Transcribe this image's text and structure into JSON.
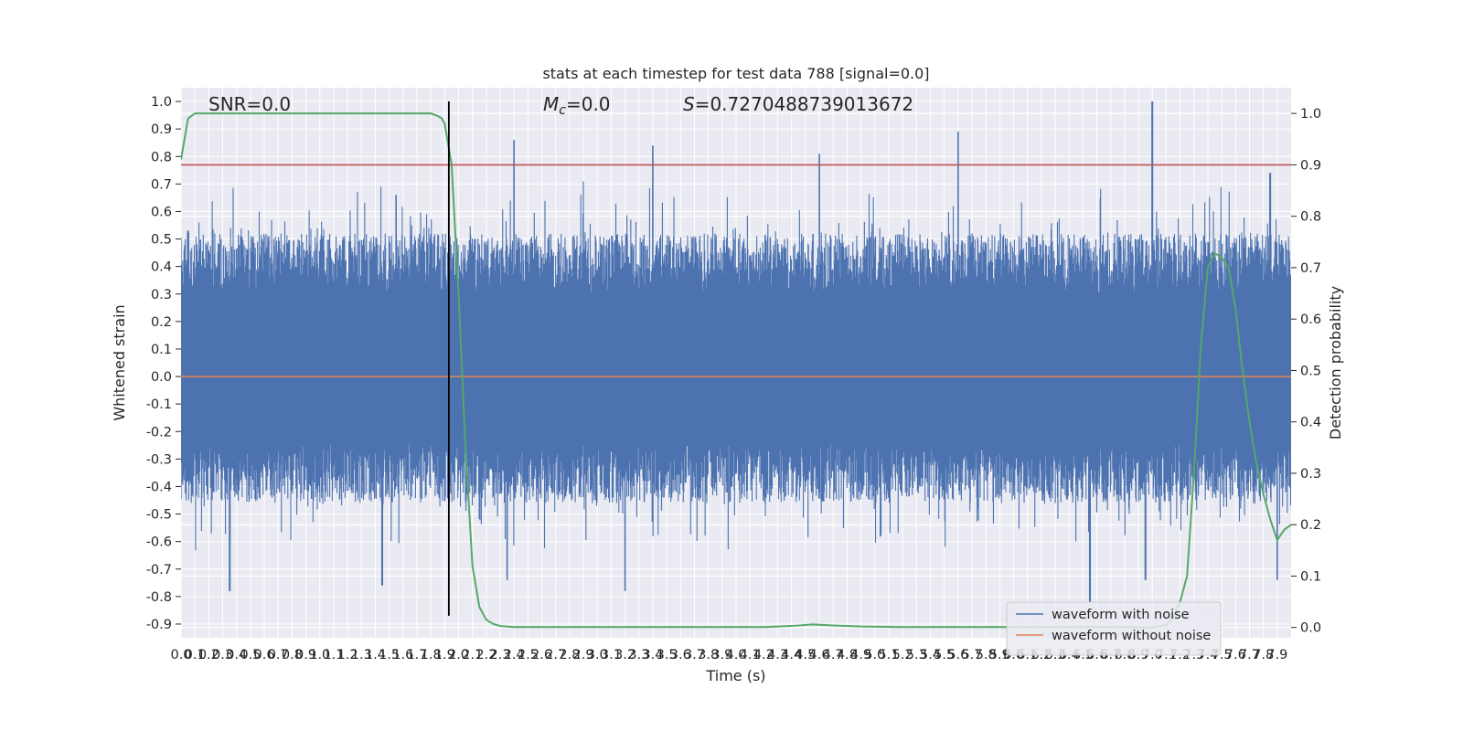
{
  "chart_data": {
    "type": "line",
    "title": "stats at each timestep for test data 788 [signal=0.0]",
    "xlabel": "Time (s)",
    "ylabel": "Whitened strain",
    "ylabel_right": "Detection probability",
    "xlim": [
      0.0,
      8.0
    ],
    "ylim": [
      -0.95,
      1.05
    ],
    "ylim_right": [
      -0.02,
      1.05
    ],
    "x_ticks": [
      "0.0",
      "0.1",
      "0.2",
      "0.3",
      "0.4",
      "0.5",
      "0.6",
      "0.7",
      "0.8",
      "0.9",
      "1.0",
      "1.1",
      "1.2",
      "1.3",
      "1.4",
      "1.5",
      "1.6",
      "1.7",
      "1.8",
      "1.9",
      "2.0",
      "2.1",
      "2.2",
      "2.3",
      "2.4",
      "2.5",
      "2.6",
      "2.7",
      "2.8",
      "2.9",
      "3.0",
      "3.1",
      "3.2",
      "3.3",
      "3.4",
      "3.5",
      "3.6",
      "3.7",
      "3.8",
      "3.9",
      "4.0",
      "4.1",
      "4.2",
      "4.3",
      "4.4",
      "4.5",
      "4.6",
      "4.7",
      "4.8",
      "4.9",
      "5.0",
      "5.1",
      "5.2",
      "5.3",
      "5.4",
      "5.5",
      "5.6",
      "5.7",
      "5.8",
      "5.9",
      "6.0",
      "6.1",
      "6.2",
      "6.3",
      "6.4",
      "6.5",
      "6.6",
      "6.7",
      "6.8",
      "6.9",
      "7.0",
      "7.1",
      "7.2",
      "7.3",
      "7.4",
      "7.5",
      "7.6",
      "7.7",
      "7.8",
      "7.9"
    ],
    "y_ticks": [
      "1.0",
      "0.9",
      "0.8",
      "0.7",
      "0.6",
      "0.5",
      "0.4",
      "0.3",
      "0.2",
      "0.1",
      "0.0",
      "-0.1",
      "-0.2",
      "-0.3",
      "-0.4",
      "-0.5",
      "-0.6",
      "-0.7",
      "-0.8",
      "-0.9"
    ],
    "y_ticks_right": [
      "1.0",
      "0.9",
      "0.8",
      "0.7",
      "0.6",
      "0.5",
      "0.4",
      "0.3",
      "0.2",
      "0.1",
      "0.0"
    ],
    "grid": true,
    "legend_position": "bottom-right",
    "annotations": {
      "snr": "SNR=0.0",
      "mc_symbol": "M",
      "mc_sub": "c",
      "mc_value": "=0.0",
      "s_symbol": "S",
      "s_value": "=0.7270488739013672"
    },
    "series": [
      {
        "name": "waveform with noise",
        "color": "#4c72b0",
        "axis": "left",
        "style": "dense noise, typical amplitude range -0.5 to 0.5",
        "peaks": [
          {
            "x": 0.05,
            "y": 0.53
          },
          {
            "x": 0.35,
            "y": 0.32
          },
          {
            "x": 1.55,
            "y": 0.66
          },
          {
            "x": 2.4,
            "y": 0.86
          },
          {
            "x": 3.4,
            "y": 0.84
          },
          {
            "x": 4.6,
            "y": 0.81
          },
          {
            "x": 5.6,
            "y": 0.89
          },
          {
            "x": 7.0,
            "y": 1.0
          },
          {
            "x": 7.85,
            "y": 0.74
          }
        ],
        "troughs": [
          {
            "x": 0.35,
            "y": -0.78
          },
          {
            "x": 1.45,
            "y": -0.76
          },
          {
            "x": 2.35,
            "y": -0.74
          },
          {
            "x": 3.2,
            "y": -0.78
          },
          {
            "x": 6.55,
            "y": -0.82
          },
          {
            "x": 6.95,
            "y": -0.74
          },
          {
            "x": 7.9,
            "y": -0.74
          }
        ]
      },
      {
        "name": "waveform without noise",
        "color": "#dd8452",
        "axis": "left",
        "x": [
          0.0,
          8.0
        ],
        "y": [
          0.0,
          0.0
        ]
      },
      {
        "color": "#55a868",
        "axis": "right",
        "x": [
          0.0,
          0.05,
          0.1,
          0.2,
          0.5,
          1.0,
          1.5,
          1.8,
          1.85,
          1.88,
          1.9,
          1.95,
          2.0,
          2.05,
          2.1,
          2.15,
          2.2,
          2.25,
          2.3,
          2.4,
          2.6,
          3.0,
          3.5,
          4.0,
          4.2,
          4.4,
          4.55,
          4.7,
          4.9,
          5.2,
          5.6,
          6.0,
          6.5,
          6.8,
          7.0,
          7.1,
          7.15,
          7.2,
          7.25,
          7.3,
          7.35,
          7.4,
          7.45,
          7.5,
          7.55,
          7.6,
          7.65,
          7.7,
          7.75,
          7.8,
          7.85,
          7.9,
          7.95,
          8.0
        ],
        "y": [
          0.91,
          0.99,
          1.0,
          1.0,
          1.0,
          1.0,
          1.0,
          1.0,
          0.995,
          0.99,
          0.98,
          0.9,
          0.65,
          0.35,
          0.12,
          0.04,
          0.015,
          0.007,
          0.003,
          0.001,
          0.001,
          0.001,
          0.001,
          0.001,
          0.001,
          0.003,
          0.006,
          0.004,
          0.002,
          0.001,
          0.001,
          0.001,
          0.001,
          0.001,
          0.0,
          0.005,
          0.02,
          0.05,
          0.1,
          0.3,
          0.55,
          0.7,
          0.728,
          0.72,
          0.7,
          0.62,
          0.5,
          0.4,
          0.32,
          0.26,
          0.21,
          0.17,
          0.19,
          0.2
        ]
      },
      {
        "color": "#c44e52",
        "axis": "right",
        "x": [
          0.0,
          8.0
        ],
        "y": [
          0.9,
          0.9
        ]
      },
      {
        "color": "#000000",
        "axis": "left",
        "type": "vline",
        "x": [
          1.93,
          1.93
        ],
        "y": [
          -0.87,
          1.0
        ]
      }
    ]
  }
}
